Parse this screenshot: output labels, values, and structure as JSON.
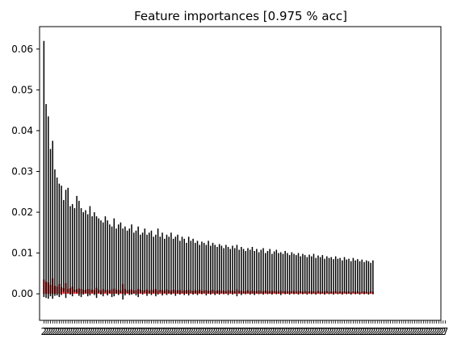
{
  "chart_data": {
    "type": "bar",
    "title": "Feature importances [0.975 % acc]",
    "xlabel": "",
    "ylabel": "",
    "ylim": [
      -0.0065,
      0.0655
    ],
    "yticks": [
      0.0,
      0.01,
      0.02,
      0.03,
      0.04,
      0.05,
      0.06
    ],
    "ytick_labels": [
      "0.00",
      "0.01",
      "0.02",
      "0.03",
      "0.04",
      "0.05",
      "0.06"
    ],
    "bar_color": "#ff0000",
    "error_bar_color": "#000000",
    "grid": false,
    "legend": "none",
    "bars": [
      {
        "value": 0.0035,
        "err_low": -0.0008,
        "err_high": 0.062
      },
      {
        "value": 0.003,
        "err_low": -0.001,
        "err_high": 0.0465
      },
      {
        "value": 0.0028,
        "err_low": -0.0012,
        "err_high": 0.0435
      },
      {
        "value": 0.0022,
        "err_low": -0.0006,
        "err_high": 0.0355
      },
      {
        "value": 0.0038,
        "err_low": -0.0012,
        "err_high": 0.0375
      },
      {
        "value": 0.002,
        "err_low": -0.0005,
        "err_high": 0.0305
      },
      {
        "value": 0.0018,
        "err_low": -0.0004,
        "err_high": 0.0285
      },
      {
        "value": 0.0024,
        "err_low": -0.0008,
        "err_high": 0.027
      },
      {
        "value": 0.0016,
        "err_low": -0.0003,
        "err_high": 0.0265
      },
      {
        "value": 0.0014,
        "err_low": 0.0005,
        "err_high": 0.023
      },
      {
        "value": 0.0026,
        "err_low": -0.001,
        "err_high": 0.0255
      },
      {
        "value": 0.0012,
        "err_low": 0.0003,
        "err_high": 0.026
      },
      {
        "value": 0.0014,
        "err_low": -0.0002,
        "err_high": 0.0215
      },
      {
        "value": 0.0018,
        "err_low": -0.0006,
        "err_high": 0.022
      },
      {
        "value": 0.001,
        "err_low": 0.0004,
        "err_high": 0.021
      },
      {
        "value": 0.0011,
        "err_low": 0.0002,
        "err_high": 0.024
      },
      {
        "value": 0.0013,
        "err_low": -0.0005,
        "err_high": 0.0228
      },
      {
        "value": 0.0012,
        "err_low": -0.0008,
        "err_high": 0.021
      },
      {
        "value": 0.001,
        "err_low": -0.0002,
        "err_high": 0.02
      },
      {
        "value": 0.0009,
        "err_low": 0.0002,
        "err_high": 0.0205
      },
      {
        "value": 0.0012,
        "err_low": -0.0006,
        "err_high": 0.0195
      },
      {
        "value": 0.0011,
        "err_low": -0.0004,
        "err_high": 0.0215
      },
      {
        "value": 0.001,
        "err_low": 0.0003,
        "err_high": 0.019
      },
      {
        "value": 0.0009,
        "err_low": -0.0003,
        "err_high": 0.02
      },
      {
        "value": 0.0015,
        "err_low": -0.001,
        "err_high": 0.019
      },
      {
        "value": 0.001,
        "err_low": 0.0002,
        "err_high": 0.0185
      },
      {
        "value": 0.0008,
        "err_low": -0.0002,
        "err_high": 0.018
      },
      {
        "value": 0.0012,
        "err_low": -0.0006,
        "err_high": 0.0175
      },
      {
        "value": 0.0009,
        "err_low": 0.0003,
        "err_high": 0.019
      },
      {
        "value": 0.001,
        "err_low": -0.0004,
        "err_high": 0.018
      },
      {
        "value": 0.0008,
        "err_low": 0.0002,
        "err_high": 0.017
      },
      {
        "value": 0.0011,
        "err_low": -0.0008,
        "err_high": 0.0165
      },
      {
        "value": 0.0013,
        "err_low": -0.0006,
        "err_high": 0.0185
      },
      {
        "value": 0.0009,
        "err_low": 0.0001,
        "err_high": 0.016
      },
      {
        "value": 0.001,
        "err_low": -0.0003,
        "err_high": 0.017
      },
      {
        "value": 0.0008,
        "err_low": 0.0002,
        "err_high": 0.0175
      },
      {
        "value": 0.0024,
        "err_low": -0.0014,
        "err_high": 0.016
      },
      {
        "value": 0.0012,
        "err_low": -0.0004,
        "err_high": 0.0165
      },
      {
        "value": 0.0009,
        "err_low": 0.0002,
        "err_high": 0.0155
      },
      {
        "value": 0.001,
        "err_low": -0.0003,
        "err_high": 0.016
      },
      {
        "value": 0.0011,
        "err_low": -0.0002,
        "err_high": 0.017
      },
      {
        "value": 0.0008,
        "err_low": 0.0001,
        "err_high": 0.015
      },
      {
        "value": 0.0009,
        "err_low": -0.0004,
        "err_high": 0.0155
      },
      {
        "value": 0.0012,
        "err_low": -0.0008,
        "err_high": 0.0165
      },
      {
        "value": 0.001,
        "err_low": 0.0002,
        "err_high": 0.0145
      },
      {
        "value": 0.0008,
        "err_low": -0.0002,
        "err_high": 0.015
      },
      {
        "value": 0.0009,
        "err_low": 0.0003,
        "err_high": 0.016
      },
      {
        "value": 0.0011,
        "err_low": -0.0005,
        "err_high": 0.0145
      },
      {
        "value": 0.0008,
        "err_low": 0.0001,
        "err_high": 0.015
      },
      {
        "value": 0.001,
        "err_low": -0.0003,
        "err_high": 0.0155
      },
      {
        "value": 0.0009,
        "err_low": 0.0002,
        "err_high": 0.014
      },
      {
        "value": 0.0012,
        "err_low": -0.0006,
        "err_high": 0.0145
      },
      {
        "value": 0.0008,
        "err_low": -0.0002,
        "err_high": 0.016
      },
      {
        "value": 0.001,
        "err_low": 0.0003,
        "err_high": 0.014
      },
      {
        "value": 0.0009,
        "err_low": -0.0004,
        "err_high": 0.015
      },
      {
        "value": 0.0007,
        "err_low": 0.0002,
        "err_high": 0.0135
      },
      {
        "value": 0.0011,
        "err_low": -0.0003,
        "err_high": 0.0145
      },
      {
        "value": 0.0009,
        "err_low": 0.0001,
        "err_high": 0.014
      },
      {
        "value": 0.0008,
        "err_low": -0.0002,
        "err_high": 0.015
      },
      {
        "value": 0.001,
        "err_low": 0.0002,
        "err_high": 0.0135
      },
      {
        "value": 0.0009,
        "err_low": -0.0005,
        "err_high": 0.014
      },
      {
        "value": 0.0008,
        "err_low": 0.0001,
        "err_high": 0.0145
      },
      {
        "value": 0.001,
        "err_low": -0.0002,
        "err_high": 0.013
      },
      {
        "value": 0.0007,
        "err_low": 0.0002,
        "err_high": 0.014
      },
      {
        "value": 0.0009,
        "err_low": -0.0003,
        "err_high": 0.0135
      },
      {
        "value": 0.0008,
        "err_low": 0.0001,
        "err_high": 0.0125
      },
      {
        "value": 0.001,
        "err_low": -0.0004,
        "err_high": 0.014
      },
      {
        "value": 0.0008,
        "err_low": 0.0002,
        "err_high": 0.013
      },
      {
        "value": 0.0007,
        "err_low": -0.0002,
        "err_high": 0.0135
      },
      {
        "value": 0.0009,
        "err_low": 0.0001,
        "err_high": 0.0125
      },
      {
        "value": 0.0008,
        "err_low": -0.0003,
        "err_high": 0.013
      },
      {
        "value": 0.001,
        "err_low": 0.0002,
        "err_high": 0.012
      },
      {
        "value": 0.0007,
        "err_low": -0.0001,
        "err_high": 0.0128
      },
      {
        "value": 0.0008,
        "err_low": 0.0002,
        "err_high": 0.0125
      },
      {
        "value": 0.0009,
        "err_low": -0.0004,
        "err_high": 0.012
      },
      {
        "value": 0.0007,
        "err_low": 0.0001,
        "err_high": 0.013
      },
      {
        "value": 0.0008,
        "err_low": -0.0002,
        "err_high": 0.0118
      },
      {
        "value": 0.001,
        "err_low": 0.0002,
        "err_high": 0.0125
      },
      {
        "value": 0.0007,
        "err_low": -0.0003,
        "err_high": 0.012
      },
      {
        "value": 0.0008,
        "err_low": 0.0001,
        "err_high": 0.0115
      },
      {
        "value": 0.0009,
        "err_low": -0.0002,
        "err_high": 0.0122
      },
      {
        "value": 0.0007,
        "err_low": 0.0002,
        "err_high": 0.0118
      },
      {
        "value": 0.0008,
        "err_low": -0.0001,
        "err_high": 0.0112
      },
      {
        "value": 0.0006,
        "err_low": 0.0001,
        "err_high": 0.012
      },
      {
        "value": 0.0009,
        "err_low": -0.0003,
        "err_high": 0.0115
      },
      {
        "value": 0.0007,
        "err_low": 0.0002,
        "err_high": 0.011
      },
      {
        "value": 0.0008,
        "err_low": -0.0002,
        "err_high": 0.0118
      },
      {
        "value": 0.0006,
        "err_low": 0.0001,
        "err_high": 0.0112
      },
      {
        "value": 0.0011,
        "err_low": -0.0006,
        "err_high": 0.012
      },
      {
        "value": 0.0007,
        "err_low": 0.0002,
        "err_high": 0.0108
      },
      {
        "value": 0.0008,
        "err_low": -0.0003,
        "err_high": 0.0115
      },
      {
        "value": 0.0006,
        "err_low": 0.0001,
        "err_high": 0.011
      },
      {
        "value": 0.0007,
        "err_low": -0.0001,
        "err_high": 0.0105
      },
      {
        "value": 0.0009,
        "err_low": 0.0002,
        "err_high": 0.0112
      },
      {
        "value": 0.0006,
        "err_low": -0.0002,
        "err_high": 0.0108
      },
      {
        "value": 0.0008,
        "err_low": 0.0001,
        "err_high": 0.0115
      },
      {
        "value": 0.0007,
        "err_low": -0.0003,
        "err_high": 0.0105
      },
      {
        "value": 0.0006,
        "err_low": 0.0002,
        "err_high": 0.011
      },
      {
        "value": 0.0008,
        "err_low": -0.0001,
        "err_high": 0.0102
      },
      {
        "value": 0.0007,
        "err_low": 0.0001,
        "err_high": 0.0108
      },
      {
        "value": 0.0006,
        "err_low": -0.0002,
        "err_high": 0.0112
      },
      {
        "value": 0.0008,
        "err_low": 0.0002,
        "err_high": 0.01
      },
      {
        "value": 0.0007,
        "err_low": -0.0001,
        "err_high": 0.0105
      },
      {
        "value": 0.0006,
        "err_low": 0.0001,
        "err_high": 0.011
      },
      {
        "value": 0.0008,
        "err_low": -0.0002,
        "err_high": 0.0098
      },
      {
        "value": 0.0006,
        "err_low": 0.0002,
        "err_high": 0.0104
      },
      {
        "value": 0.0007,
        "err_low": -0.0001,
        "err_high": 0.0108
      },
      {
        "value": 0.0005,
        "err_low": 0.0001,
        "err_high": 0.01
      },
      {
        "value": 0.0008,
        "err_low": -0.0003,
        "err_high": 0.0102
      },
      {
        "value": 0.0006,
        "err_low": 0.0002,
        "err_high": 0.0098
      },
      {
        "value": 0.0007,
        "err_low": -0.0001,
        "err_high": 0.0105
      },
      {
        "value": 0.0005,
        "err_low": 0.0001,
        "err_high": 0.01
      },
      {
        "value": 0.0007,
        "err_low": -0.0002,
        "err_high": 0.0095
      },
      {
        "value": 0.0006,
        "err_low": 0.0002,
        "err_high": 0.0102
      },
      {
        "value": 0.0008,
        "err_low": -0.0001,
        "err_high": 0.0098
      },
      {
        "value": 0.0005,
        "err_low": 0.0001,
        "err_high": 0.0095
      },
      {
        "value": 0.0007,
        "err_low": -0.0002,
        "err_high": 0.01
      },
      {
        "value": 0.0006,
        "err_low": 0.0002,
        "err_high": 0.0092
      },
      {
        "value": 0.0005,
        "err_low": -0.0001,
        "err_high": 0.0098
      },
      {
        "value": 0.0007,
        "err_low": 0.0001,
        "err_high": 0.0095
      },
      {
        "value": 0.0006,
        "err_low": -0.0002,
        "err_high": 0.009
      },
      {
        "value": 0.0005,
        "err_low": 0.0002,
        "err_high": 0.0096
      },
      {
        "value": 0.0007,
        "err_low": -0.0001,
        "err_high": 0.0092
      },
      {
        "value": 0.0006,
        "err_low": 0.0001,
        "err_high": 0.0098
      },
      {
        "value": 0.0005,
        "err_low": -0.0002,
        "err_high": 0.0088
      },
      {
        "value": 0.0007,
        "err_low": 0.0002,
        "err_high": 0.0094
      },
      {
        "value": 0.0006,
        "err_low": -0.0001,
        "err_high": 0.009
      },
      {
        "value": 0.0005,
        "err_low": 0.0001,
        "err_high": 0.0095
      },
      {
        "value": 0.0006,
        "err_low": -0.0002,
        "err_high": 0.0086
      },
      {
        "value": 0.0007,
        "err_low": 0.0002,
        "err_high": 0.0092
      },
      {
        "value": 0.0005,
        "err_low": -0.0001,
        "err_high": 0.0088
      },
      {
        "value": 0.0006,
        "err_low": 0.0001,
        "err_high": 0.009
      },
      {
        "value": 0.0005,
        "err_low": -0.0002,
        "err_high": 0.0085
      },
      {
        "value": 0.0007,
        "err_low": 0.0002,
        "err_high": 0.0092
      },
      {
        "value": 0.0005,
        "err_low": -0.0001,
        "err_high": 0.0086
      },
      {
        "value": 0.0006,
        "err_low": 0.0001,
        "err_high": 0.0088
      },
      {
        "value": 0.0005,
        "err_low": -0.0002,
        "err_high": 0.0082
      },
      {
        "value": 0.0006,
        "err_low": 0.0002,
        "err_high": 0.009
      },
      {
        "value": 0.0005,
        "err_low": -0.0001,
        "err_high": 0.0084
      },
      {
        "value": 0.0006,
        "err_low": 0.0001,
        "err_high": 0.0086
      },
      {
        "value": 0.0004,
        "err_low": -0.0002,
        "err_high": 0.008
      },
      {
        "value": 0.0006,
        "err_low": 0.0002,
        "err_high": 0.0088
      },
      {
        "value": 0.0005,
        "err_low": -0.0001,
        "err_high": 0.0082
      },
      {
        "value": 0.0006,
        "err_low": 0.0001,
        "err_high": 0.0085
      },
      {
        "value": 0.0004,
        "err_low": -0.0002,
        "err_high": 0.008
      },
      {
        "value": 0.0005,
        "err_low": 0.0002,
        "err_high": 0.0084
      },
      {
        "value": 0.0006,
        "err_low": -0.0001,
        "err_high": 0.0078
      },
      {
        "value": 0.0005,
        "err_low": 0.0001,
        "err_high": 0.0082
      },
      {
        "value": 0.0004,
        "err_low": -0.0002,
        "err_high": 0.008
      },
      {
        "value": 0.0006,
        "err_low": 0.0002,
        "err_high": 0.0076
      },
      {
        "value": 0.0005,
        "err_low": -0.0001,
        "err_high": 0.0082
      }
    ],
    "x_tick_labels": [
      "2",
      "2",
      "2",
      "2",
      "2",
      "2",
      "2",
      "2",
      "2",
      "2",
      "2",
      "2",
      "2",
      "2",
      "2",
      "2",
      "2",
      "2",
      "2",
      "2",
      "2",
      "2",
      "2",
      "2",
      "2",
      "2",
      "2",
      "2",
      "2",
      "2",
      "2",
      "2",
      "2",
      "2",
      "2",
      "2",
      "2",
      "2",
      "2",
      "2",
      "2",
      "2",
      "2",
      "2",
      "2",
      "2",
      "2",
      "2",
      "2",
      "2",
      "2",
      "2",
      "2",
      "2",
      "2",
      "2",
      "2",
      "2",
      "2",
      "2",
      "2",
      "2",
      "2",
      "2",
      "2",
      "2",
      "2",
      "2",
      "2",
      "2",
      "2",
      "2",
      "2",
      "2",
      "2",
      "2",
      "2",
      "2",
      "2",
      "2",
      "2",
      "2",
      "2",
      "2",
      "2",
      "2",
      "2",
      "2",
      "2",
      "2",
      "2",
      "2",
      "2",
      "2",
      "2",
      "2",
      "2",
      "2",
      "2",
      "2",
      "2",
      "2",
      "2",
      "2",
      "2",
      "2",
      "2",
      "2",
      "2",
      "2",
      "2",
      "2",
      "2",
      "2",
      "2",
      "2",
      "2",
      "2",
      "2",
      "2",
      "2",
      "2",
      "2",
      "2",
      "2",
      "2",
      "2",
      "2",
      "2",
      "2",
      "2",
      "2",
      "2",
      "2",
      "2",
      "2",
      "2",
      "2",
      "2",
      "2",
      "2",
      "2",
      "2",
      "2",
      "2",
      "2",
      "2",
      "2",
      "2",
      "2",
      "2",
      "2",
      "2",
      "2",
      "2",
      "2",
      "2",
      "2",
      "2",
      "2",
      "2",
      "2",
      "2",
      "2",
      "2",
      "2",
      "2",
      "2",
      "2",
      "2",
      "2",
      "2",
      "2",
      "2",
      "2",
      "2",
      "2",
      "2",
      "2",
      "2",
      "2",
      "2",
      "2",
      "7"
    ]
  }
}
